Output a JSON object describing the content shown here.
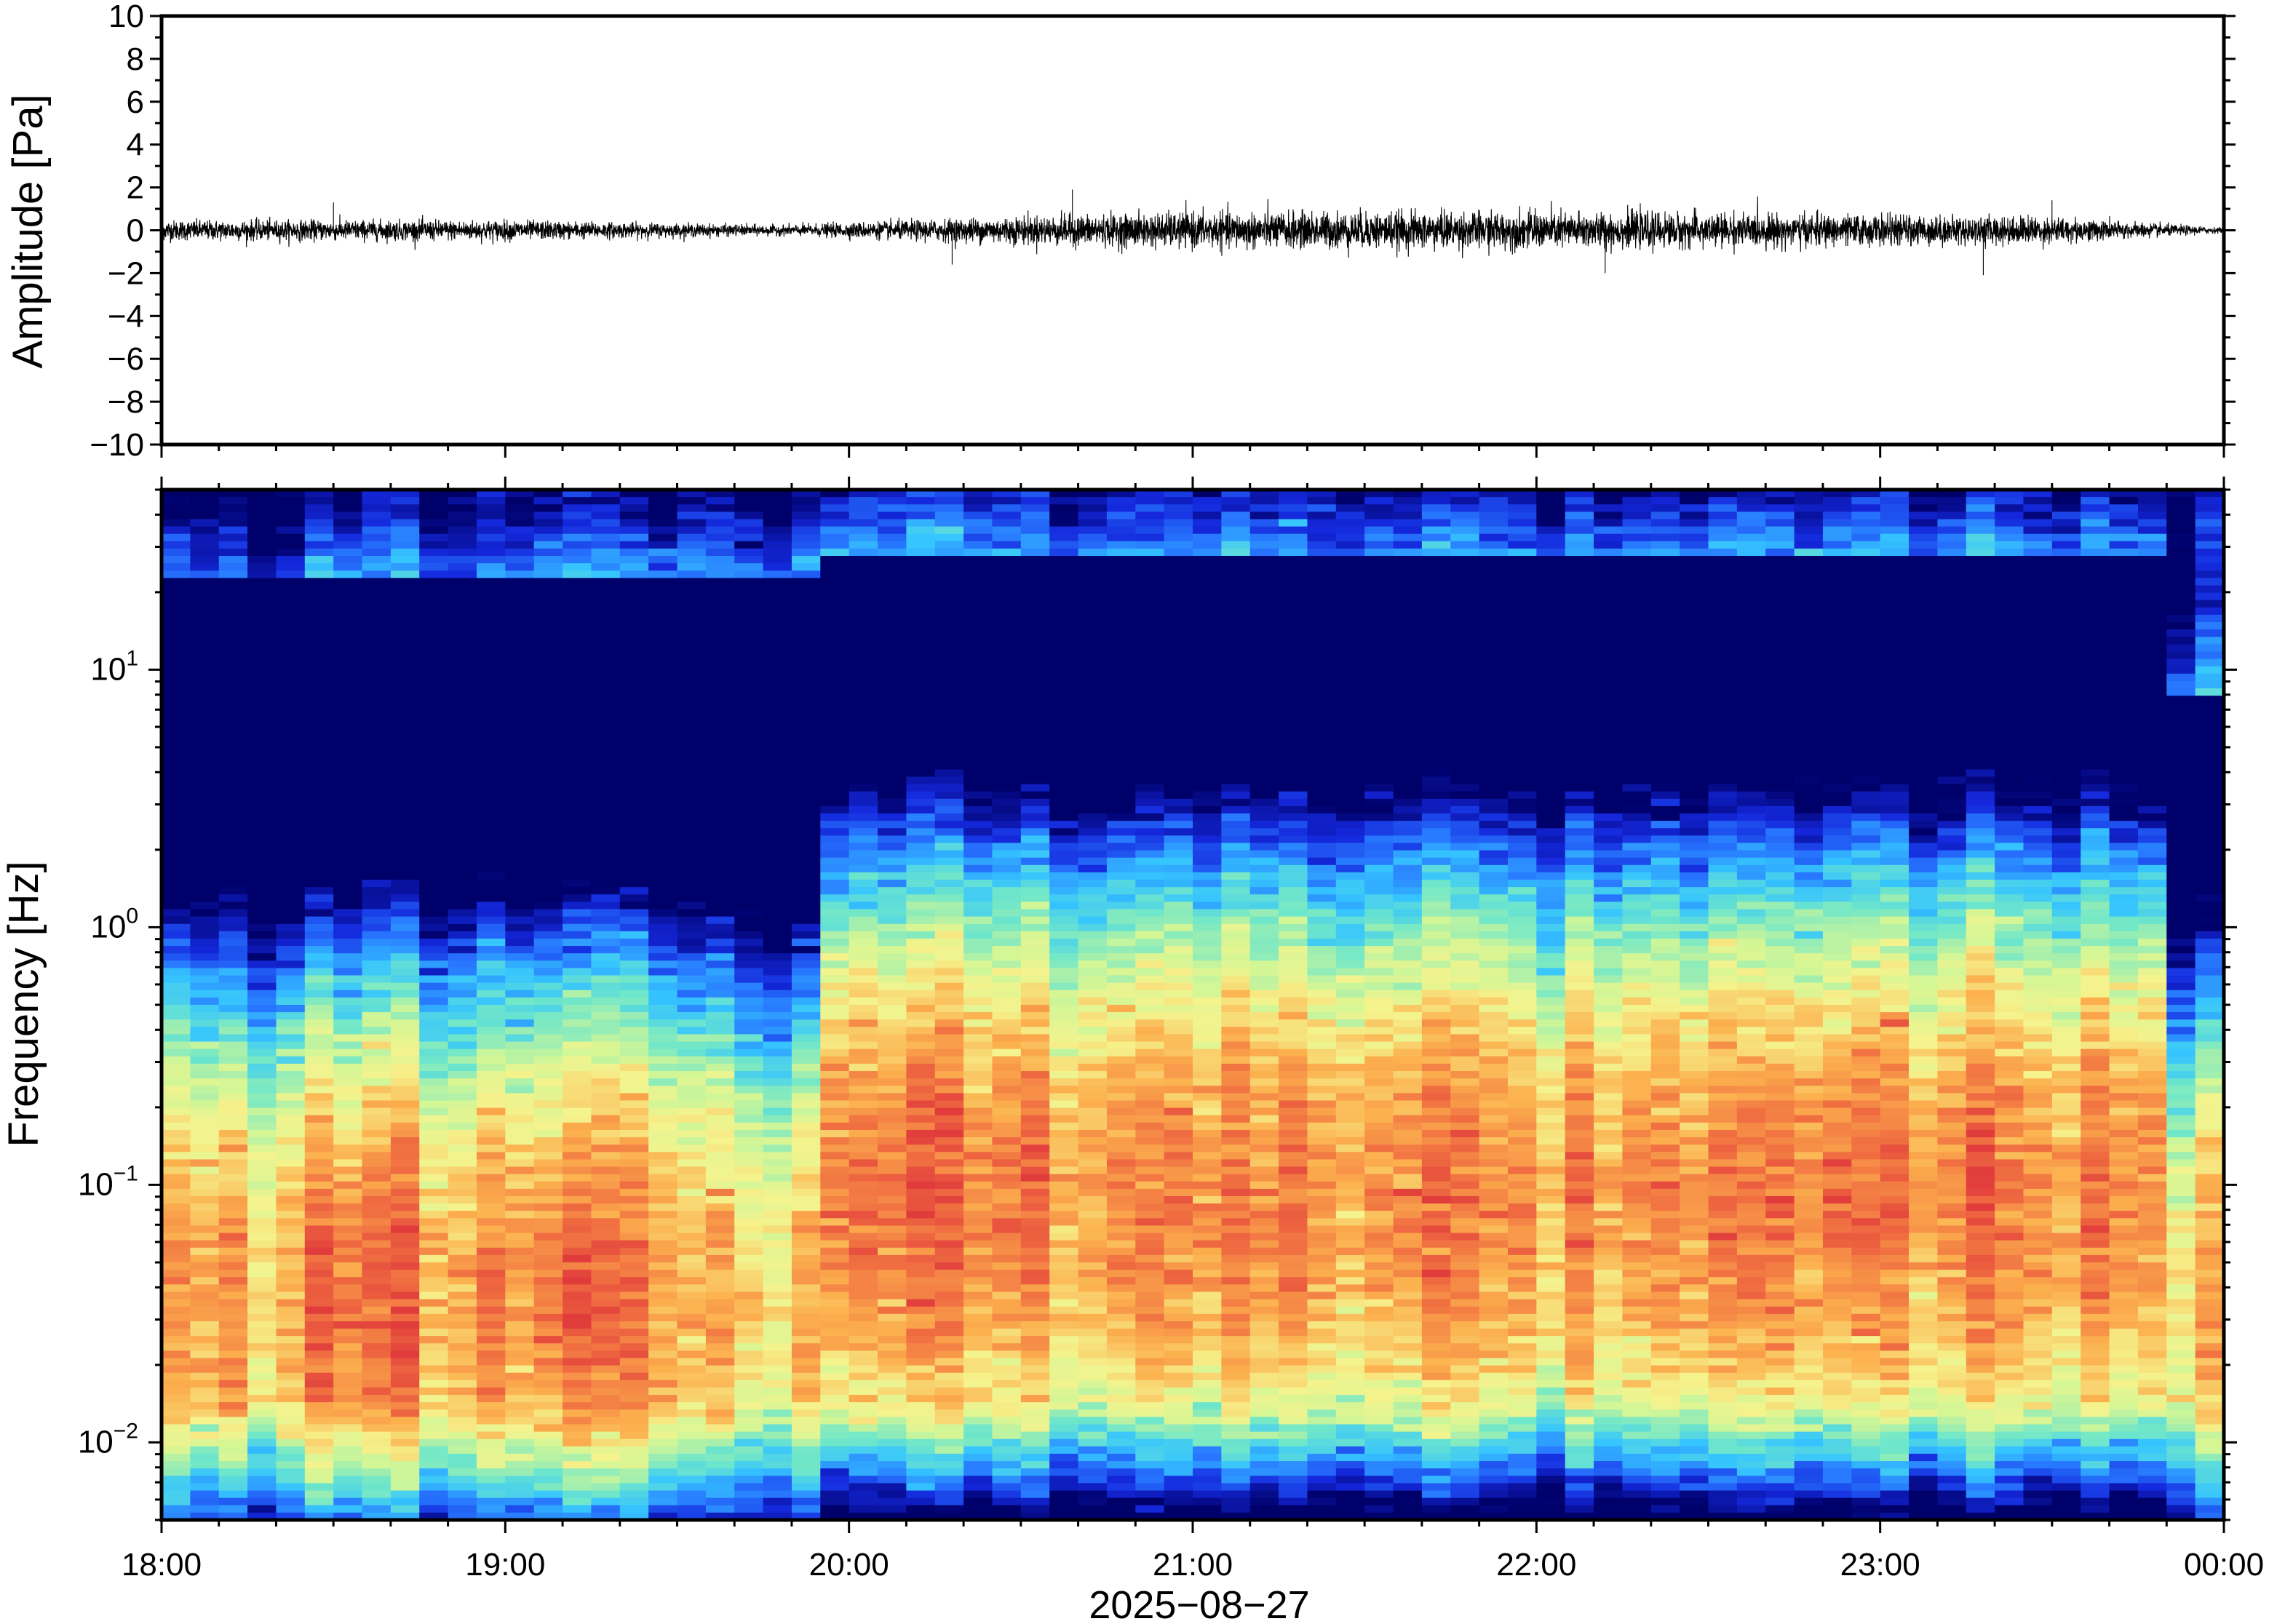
{
  "chart_data": [
    {
      "type": "line",
      "panel": "waveform",
      "ylabel": "Amplitude [Pa]",
      "ylim": [
        -10,
        10
      ],
      "yticks": [
        10,
        8,
        6,
        4,
        2,
        0,
        -2,
        -4,
        -6,
        -8,
        -10
      ],
      "ytick_labels": [
        "10",
        "8",
        "6",
        "4",
        "2",
        "0",
        "−2",
        "−4",
        "−6",
        "−8",
        "−10"
      ],
      "xlim": [
        "18:00",
        "00:00"
      ],
      "grid": false,
      "envelope": {
        "x_hours": [
          18.0,
          18.5,
          19.0,
          19.5,
          19.8,
          20.0,
          20.2,
          20.5,
          21.0,
          21.5,
          22.0,
          22.5,
          23.0,
          23.5,
          23.8,
          24.0
        ],
        "amplitude_pa": [
          0.6,
          0.6,
          0.6,
          0.4,
          0.3,
          0.45,
          0.6,
          0.85,
          1.05,
          1.1,
          1.1,
          1.0,
          0.9,
          0.8,
          0.4,
          0.15
        ]
      },
      "peaks_pa": [
        {
          "x_hour": 18.5,
          "value": 1.3
        },
        {
          "x_hour": 20.3,
          "value": -1.6
        },
        {
          "x_hour": 20.65,
          "value": 1.9
        },
        {
          "x_hour": 22.2,
          "value": -2.0
        },
        {
          "x_hour": 23.3,
          "value": -2.1
        },
        {
          "x_hour": 23.5,
          "value": 1.4
        }
      ]
    },
    {
      "type": "heatmap",
      "panel": "spectrogram",
      "ylabel": "Frequency [Hz]",
      "yscale": "log",
      "ylim": [
        0.005,
        50
      ],
      "yticks": [
        10,
        1,
        0.1,
        0.01
      ],
      "ytick_labels": [
        {
          "base": "10",
          "exp": "1"
        },
        {
          "base": "10",
          "exp": "0"
        },
        {
          "base": "10",
          "exp": "−1"
        },
        {
          "base": "10",
          "exp": "−2"
        }
      ],
      "xlim": [
        "18:00",
        "00:00"
      ],
      "xticks": [
        "18:00",
        "19:00",
        "20:00",
        "21:00",
        "22:00",
        "23:00",
        "00:00"
      ],
      "xlabel": "2025−08−27",
      "colormap": "jet",
      "colormap_range": [
        "#00006a",
        "#2846ff",
        "#35c4ff",
        "#70e7c9",
        "#f5f38d",
        "#fcb04e",
        "#e9473f"
      ],
      "time_bins": 72,
      "freq_bins": 140,
      "description_of_field": {
        "peak_band_hz": [
          0.02,
          0.15
        ],
        "quiet_interval_hours": [
          19.5,
          19.9
        ],
        "high_freq_cutoff_hz": 30
      }
    }
  ]
}
